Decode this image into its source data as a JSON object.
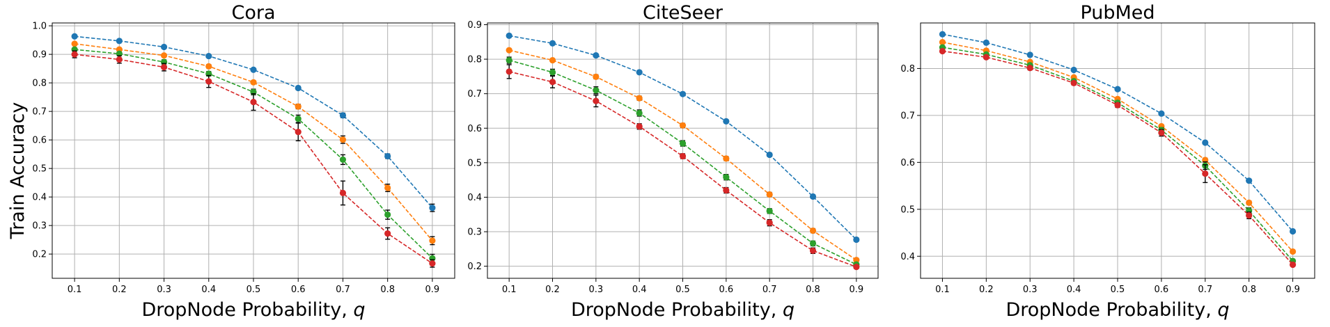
{
  "figure": {
    "ylabel": "Train Accuracy",
    "xlabel_prefix": "DropNode Probability, ",
    "xlabel_var": "q"
  },
  "colors": [
    "#1f77b4",
    "#ff7f0e",
    "#2ca02c",
    "#d62728"
  ],
  "chart_data": [
    {
      "type": "line",
      "title": "Cora",
      "xlabel": "DropNode Probability, q",
      "ylabel": "Train Accuracy",
      "x": [
        0.1,
        0.2,
        0.3,
        0.4,
        0.5,
        0.6,
        0.7,
        0.8,
        0.9
      ],
      "xlim": [
        0.05,
        0.95
      ],
      "ylim": [
        0.115,
        1.01
      ],
      "yticks": [
        0.2,
        0.3,
        0.4,
        0.5,
        0.6,
        0.7,
        0.8,
        0.9,
        1.0
      ],
      "grid": true,
      "series": [
        {
          "values": [
            0.963,
            0.947,
            0.926,
            0.894,
            0.846,
            0.782,
            0.686,
            0.543,
            0.362
          ],
          "errors": [
            0.004,
            0.004,
            0.004,
            0.004,
            0.005,
            0.006,
            0.008,
            0.008,
            0.013
          ]
        },
        {
          "values": [
            0.937,
            0.917,
            0.896,
            0.858,
            0.802,
            0.717,
            0.601,
            0.432,
            0.247
          ],
          "errors": [
            0.005,
            0.005,
            0.005,
            0.006,
            0.006,
            0.008,
            0.013,
            0.013,
            0.014
          ]
        },
        {
          "values": [
            0.917,
            0.902,
            0.873,
            0.832,
            0.768,
            0.674,
            0.531,
            0.338,
            0.185
          ],
          "errors": [
            0.006,
            0.006,
            0.008,
            0.008,
            0.01,
            0.013,
            0.017,
            0.016,
            0.014
          ]
        },
        {
          "values": [
            0.9,
            0.882,
            0.855,
            0.805,
            0.733,
            0.628,
            0.414,
            0.272,
            0.167
          ],
          "errors": [
            0.012,
            0.013,
            0.013,
            0.021,
            0.029,
            0.031,
            0.042,
            0.02,
            0.013
          ]
        }
      ]
    },
    {
      "type": "line",
      "title": "CiteSeer",
      "xlabel": "DropNode Probability, q",
      "ylabel": "",
      "x": [
        0.1,
        0.2,
        0.3,
        0.4,
        0.5,
        0.6,
        0.7,
        0.8,
        0.9
      ],
      "xlim": [
        0.05,
        0.95
      ],
      "ylim": [
        0.165,
        0.905
      ],
      "yticks": [
        0.2,
        0.3,
        0.4,
        0.5,
        0.6,
        0.7,
        0.8,
        0.9
      ],
      "grid": true,
      "series": [
        {
          "values": [
            0.868,
            0.846,
            0.811,
            0.762,
            0.699,
            0.62,
            0.523,
            0.402,
            0.277
          ],
          "errors": [
            0.003,
            0.003,
            0.003,
            0.003,
            0.004,
            0.004,
            0.005,
            0.005,
            0.005
          ]
        },
        {
          "values": [
            0.826,
            0.797,
            0.749,
            0.687,
            0.608,
            0.512,
            0.408,
            0.303,
            0.218
          ],
          "errors": [
            0.004,
            0.004,
            0.006,
            0.006,
            0.006,
            0.006,
            0.006,
            0.006,
            0.005
          ]
        },
        {
          "values": [
            0.797,
            0.762,
            0.71,
            0.644,
            0.556,
            0.458,
            0.36,
            0.266,
            0.205
          ],
          "errors": [
            0.009,
            0.009,
            0.01,
            0.009,
            0.008,
            0.008,
            0.007,
            0.007,
            0.005
          ]
        },
        {
          "values": [
            0.764,
            0.734,
            0.679,
            0.605,
            0.519,
            0.42,
            0.326,
            0.245,
            0.198
          ],
          "errors": [
            0.02,
            0.017,
            0.017,
            0.008,
            0.007,
            0.008,
            0.009,
            0.008,
            0.005
          ]
        }
      ]
    },
    {
      "type": "line",
      "title": "PubMed",
      "xlabel": "DropNode Probability, q",
      "ylabel": "",
      "x": [
        0.1,
        0.2,
        0.3,
        0.4,
        0.5,
        0.6,
        0.7,
        0.8,
        0.9
      ],
      "xlim": [
        0.05,
        0.95
      ],
      "ylim": [
        0.353,
        0.897
      ],
      "yticks": [
        0.4,
        0.5,
        0.6,
        0.7,
        0.8
      ],
      "grid": true,
      "series": [
        {
          "values": [
            0.873,
            0.855,
            0.829,
            0.797,
            0.756,
            0.704,
            0.642,
            0.561,
            0.453
          ],
          "errors": [
            0.002,
            0.002,
            0.002,
            0.002,
            0.002,
            0.002,
            0.003,
            0.003,
            0.003
          ]
        },
        {
          "values": [
            0.856,
            0.838,
            0.814,
            0.781,
            0.735,
            0.677,
            0.605,
            0.514,
            0.41
          ],
          "errors": [
            0.002,
            0.002,
            0.002,
            0.002,
            0.003,
            0.003,
            0.004,
            0.004,
            0.003
          ]
        },
        {
          "values": [
            0.845,
            0.83,
            0.807,
            0.773,
            0.727,
            0.669,
            0.593,
            0.497,
            0.39
          ],
          "errors": [
            0.002,
            0.002,
            0.003,
            0.003,
            0.004,
            0.005,
            0.008,
            0.006,
            0.003
          ]
        },
        {
          "values": [
            0.837,
            0.824,
            0.801,
            0.769,
            0.722,
            0.663,
            0.576,
            0.487,
            0.382
          ],
          "errors": [
            0.003,
            0.003,
            0.004,
            0.004,
            0.005,
            0.007,
            0.019,
            0.007,
            0.003
          ]
        }
      ]
    }
  ]
}
